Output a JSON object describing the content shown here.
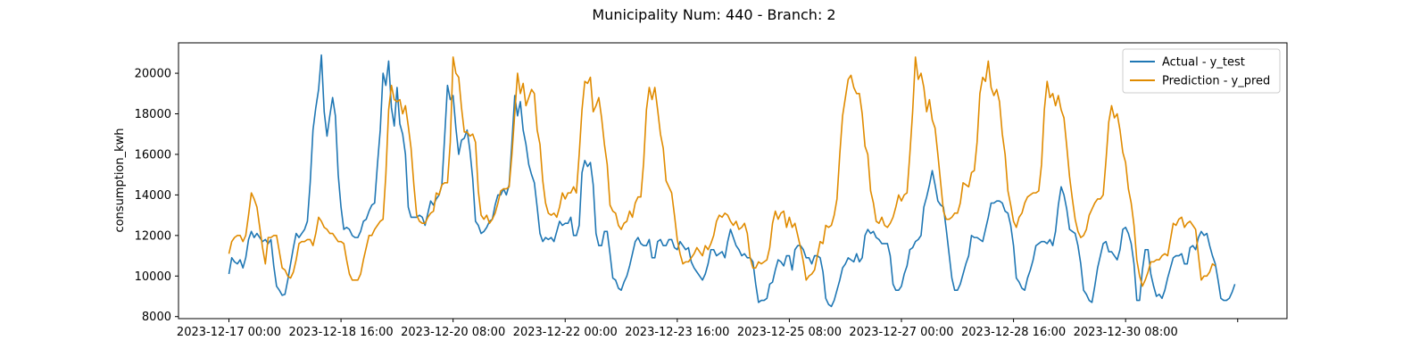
{
  "chart_data": {
    "type": "line",
    "title": "Municipality Num: 440 - Branch: 2",
    "xlabel": "",
    "ylabel": "consumption_kwh",
    "ylim": [
      7900,
      21500
    ],
    "yticks": [
      8000,
      10000,
      12000,
      14000,
      16000,
      18000,
      20000
    ],
    "xticks": [
      {
        "label": "2023-12-17 00:00",
        "hour": 0
      },
      {
        "label": "2023-12-18 16:00",
        "hour": 40
      },
      {
        "label": "2023-12-20 08:00",
        "hour": 80
      },
      {
        "label": "2023-12-22 00:00",
        "hour": 120
      },
      {
        "label": "2023-12-23 16:00",
        "hour": 160
      },
      {
        "label": "2023-12-25 08:00",
        "hour": 200
      },
      {
        "label": "2023-12-27 00:00",
        "hour": 240
      },
      {
        "label": "2023-12-28 16:00",
        "hour": 280
      },
      {
        "label": "2023-12-30 08:00",
        "hour": 320
      },
      {
        "label": "",
        "hour": 360
      }
    ],
    "grid": false,
    "legend_position": "top-right",
    "series": [
      {
        "name": "Actual - y_test",
        "color": "#1f77b4",
        "values": [
          10100,
          10900,
          10700,
          10600,
          10800,
          10400,
          10900,
          11800,
          12200,
          11900,
          12100,
          11900,
          11700,
          11800,
          11600,
          11800,
          10500,
          9500,
          9300,
          9050,
          9100,
          9800,
          10600,
          11400,
          12100,
          11900,
          12100,
          12300,
          12700,
          14600,
          17200,
          18300,
          19200,
          20900,
          18100,
          16900,
          17900,
          18800,
          17900,
          15000,
          13400,
          12300,
          12400,
          12300,
          12000,
          11900,
          11900,
          12200,
          12700,
          12800,
          13200,
          13500,
          13600,
          15500,
          17200,
          20000,
          19400,
          20600,
          18300,
          17400,
          19300,
          17500,
          17000,
          16000,
          13400,
          12900,
          12900,
          12900,
          13000,
          12900,
          12500,
          13100,
          13700,
          13500,
          13800,
          14000,
          14500,
          16900,
          19400,
          18700,
          18900,
          17300,
          16000,
          16700,
          16800,
          17200,
          16200,
          14800,
          12700,
          12500,
          12100,
          12200,
          12400,
          12700,
          12800,
          13500,
          14000,
          14000,
          14300,
          14000,
          14500,
          16600,
          18900,
          17900,
          18600,
          17200,
          16500,
          15500,
          15000,
          14600,
          13400,
          12100,
          11700,
          11900,
          11800,
          11900,
          11700,
          12200,
          12700,
          12500,
          12600,
          12600,
          12900,
          12000,
          12000,
          12500,
          15100,
          15700,
          15400,
          15600,
          14500,
          12100,
          11500,
          11500,
          12200,
          12200,
          11100,
          9900,
          9800,
          9400,
          9300,
          9700,
          10000,
          10500,
          11100,
          11700,
          11900,
          11600,
          11500,
          11500,
          11800,
          10900,
          10900,
          11700,
          11800,
          11500,
          11500,
          11800,
          11800,
          11400,
          11300,
          11700,
          11500,
          11300,
          11400,
          10700,
          10400,
          10200,
          10000,
          9800,
          10100,
          10600,
          11300,
          11300,
          11000,
          11100,
          11200,
          10900,
          11700,
          12300,
          11900,
          11500,
          11300,
          11000,
          11100,
          10900,
          10900,
          10700,
          9600,
          8700,
          8800,
          8800,
          8900,
          9600,
          9700,
          10300,
          10800,
          10700,
          10500,
          11000,
          11000,
          10300,
          11300,
          11500,
          11500,
          11300,
          10900,
          10900,
          10600,
          11000,
          11000,
          10900,
          10200,
          8900,
          8600,
          8500,
          8800,
          9300,
          9800,
          10400,
          10600,
          10900,
          10800,
          10700,
          11100,
          10700,
          10900,
          12000,
          12300,
          12100,
          12200,
          11900,
          11800,
          11600,
          11600,
          11600,
          11000,
          9600,
          9300,
          9300,
          9500,
          10100,
          10500,
          11300,
          11400,
          11700,
          11800,
          12000,
          13400,
          13900,
          14500,
          15200,
          14500,
          13700,
          13500,
          13400,
          12300,
          11100,
          9900,
          9300,
          9300,
          9600,
          10100,
          10600,
          11000,
          12000,
          11900,
          11900,
          11800,
          11700,
          12300,
          12900,
          13600,
          13600,
          13700,
          13700,
          13600,
          13200,
          13100,
          12500,
          11500,
          9900,
          9700,
          9400,
          9300,
          9900,
          10300,
          10800,
          11500,
          11600,
          11700,
          11700,
          11600,
          11800,
          11500,
          12200,
          13500,
          14400,
          14000,
          13300,
          12300,
          12200,
          12100,
          11500,
          10600,
          9300,
          9100,
          8800,
          8700,
          9500,
          10400,
          11000,
          11600,
          11700,
          11200,
          11200,
          11000,
          10800,
          11300,
          12300,
          12400,
          12100,
          11600,
          10600,
          8800,
          8800,
          10300,
          11300,
          11300,
          10100,
          9500,
          9000,
          9100,
          8900,
          9300,
          9900,
          10400,
          10900,
          11000,
          11000,
          11100,
          10600,
          10600,
          11400,
          11500,
          11300,
          11900,
          12200,
          12000,
          12100,
          11500,
          11000,
          10600,
          9800,
          8900,
          8800,
          8800,
          8900,
          9200,
          9600
        ]
      },
      {
        "name": "Prediction - y_pred",
        "color": "#e08b00",
        "values": [
          11100,
          11700,
          11900,
          12000,
          12000,
          11700,
          12000,
          13000,
          14100,
          13800,
          13400,
          12400,
          11400,
          10600,
          11900,
          11900,
          12000,
          12000,
          11200,
          10400,
          10300,
          10000,
          9900,
          10200,
          10800,
          11600,
          11700,
          11700,
          11800,
          11800,
          11500,
          12100,
          12900,
          12700,
          12400,
          12300,
          12100,
          12100,
          11900,
          11700,
          11700,
          11600,
          10800,
          10100,
          9800,
          9800,
          9800,
          10100,
          10800,
          11400,
          12000,
          12000,
          12300,
          12500,
          12700,
          12800,
          15000,
          18200,
          19400,
          18700,
          18600,
          18700,
          18000,
          18400,
          17400,
          16300,
          14500,
          13000,
          12700,
          12600,
          12600,
          12900,
          13100,
          13200,
          14100,
          14000,
          14500,
          14600,
          14600,
          16600,
          20800,
          20000,
          19800,
          18300,
          17100,
          17100,
          16900,
          17000,
          16600,
          14200,
          13000,
          12800,
          13000,
          12600,
          12800,
          13100,
          13600,
          14200,
          14300,
          14300,
          14400,
          16000,
          18000,
          20000,
          19000,
          19500,
          18400,
          18800,
          19200,
          19000,
          17200,
          16500,
          14700,
          13600,
          13100,
          13000,
          13100,
          12900,
          13400,
          14100,
          13800,
          14100,
          14100,
          14400,
          14100,
          16000,
          18200,
          19600,
          19500,
          19800,
          18100,
          18400,
          18800,
          17800,
          16500,
          15500,
          13500,
          13200,
          13100,
          12500,
          12300,
          12600,
          12700,
          13200,
          12900,
          13600,
          13900,
          13900,
          15600,
          18200,
          19300,
          18700,
          19300,
          18200,
          17000,
          16300,
          14700,
          14400,
          14100,
          13000,
          11800,
          11100,
          10600,
          10700,
          10700,
          10900,
          11100,
          11400,
          11200,
          11000,
          11500,
          11300,
          11600,
          12000,
          12700,
          13000,
          12900,
          13100,
          13000,
          12700,
          12500,
          12700,
          12300,
          12400,
          12600,
          12100,
          10900,
          10400,
          10400,
          10700,
          10600,
          10700,
          10800,
          11400,
          12600,
          13200,
          12800,
          13100,
          13200,
          12400,
          12900,
          12400,
          12600,
          12000,
          11400,
          10700,
          9800,
          10000,
          10100,
          10300,
          11000,
          11700,
          11600,
          12500,
          12400,
          12500,
          13000,
          13800,
          16000,
          17900,
          18800,
          19700,
          19900,
          19300,
          19000,
          19000,
          18000,
          16400,
          16000,
          14200,
          13600,
          12700,
          12600,
          12900,
          12500,
          12400,
          12600,
          12900,
          13400,
          14000,
          13700,
          14000,
          14100,
          16000,
          18100,
          20800,
          19700,
          20000,
          19300,
          18100,
          18700,
          17700,
          17300,
          16000,
          14600,
          13200,
          12800,
          12800,
          12900,
          13100,
          13100,
          13600,
          14600,
          14500,
          14400,
          15100,
          15200,
          16600,
          19000,
          19800,
          19600,
          20600,
          19300,
          18900,
          19200,
          18600,
          17000,
          16000,
          14200,
          13500,
          12700,
          12400,
          12900,
          13100,
          13600,
          13900,
          14000,
          14100,
          14100,
          14200,
          15500,
          18200,
          19600,
          18800,
          19000,
          18400,
          18900,
          18200,
          17800,
          16400,
          14900,
          13800,
          12800,
          12200,
          11900,
          12000,
          12300,
          13000,
          13300,
          13600,
          13800,
          13800,
          14000,
          15700,
          17600,
          18400,
          17800,
          18000,
          17200,
          16100,
          15600,
          14300,
          13600,
          12500,
          10800,
          10000,
          9500,
          9800,
          10200,
          10700,
          10700,
          10800,
          10800,
          11000,
          11100,
          11000,
          11800,
          12600,
          12500,
          12800,
          12900,
          12400,
          12600,
          12700,
          12500,
          12300,
          11000,
          9800,
          10000,
          10000,
          10200,
          10600,
          10500
        ]
      }
    ]
  }
}
